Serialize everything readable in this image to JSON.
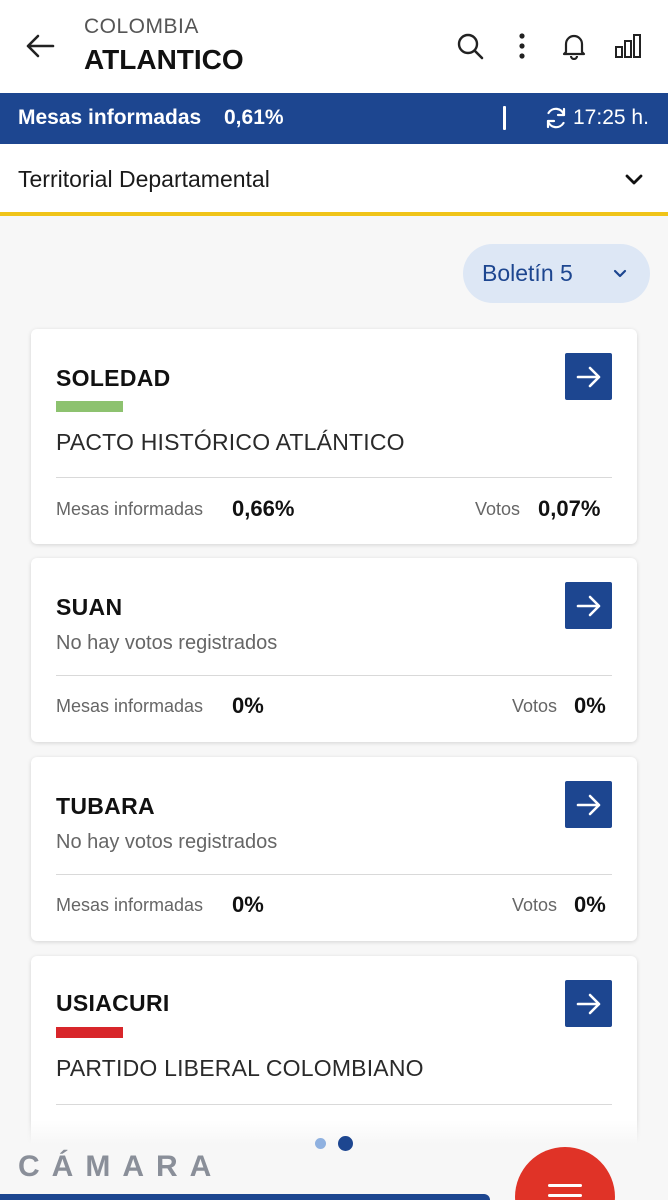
{
  "header": {
    "breadcrumb": "COLOMBIA",
    "title": "ATLANTICO"
  },
  "status": {
    "label": "Mesas informadas",
    "percent": "0,61%",
    "time": "17:25 h."
  },
  "selector": {
    "label": "Territorial Departamental"
  },
  "boletin": {
    "label": "Boletín 5"
  },
  "cards": [
    {
      "name": "SOLEDAD",
      "party": "PACTO HISTÓRICO ATLÁNTICO",
      "party_color": "#8dc26f",
      "mesas_label": "Mesas informadas",
      "mesas_value": "0,66%",
      "votos_label": "Votos",
      "votos_value": "0,07%"
    },
    {
      "name": "SUAN",
      "message": "No hay votos registrados",
      "mesas_label": "Mesas informadas",
      "mesas_value": "0%",
      "votos_label": "Votos",
      "votos_value": "0%"
    },
    {
      "name": "TUBARA",
      "message": "No hay votos registrados",
      "mesas_label": "Mesas informadas",
      "mesas_value": "0%",
      "votos_label": "Votos",
      "votos_value": "0%"
    },
    {
      "name": "USIACURI",
      "party": "PARTIDO LIBERAL COLOMBIANO",
      "party_color": "#d8262a"
    }
  ],
  "pagination": {
    "pages": 2,
    "active": 2
  },
  "footer": {
    "brand": "CÁMARA"
  },
  "colors": {
    "primary": "#1d4690",
    "accent_yellow": "#f0c419",
    "fab_red": "#e03327"
  },
  "icons": [
    "arrow-left-icon",
    "search-icon",
    "more-vertical-icon",
    "bell-icon",
    "bar-chart-icon",
    "refresh-icon",
    "chevron-down-icon",
    "arrow-right-icon",
    "menu-icon"
  ]
}
